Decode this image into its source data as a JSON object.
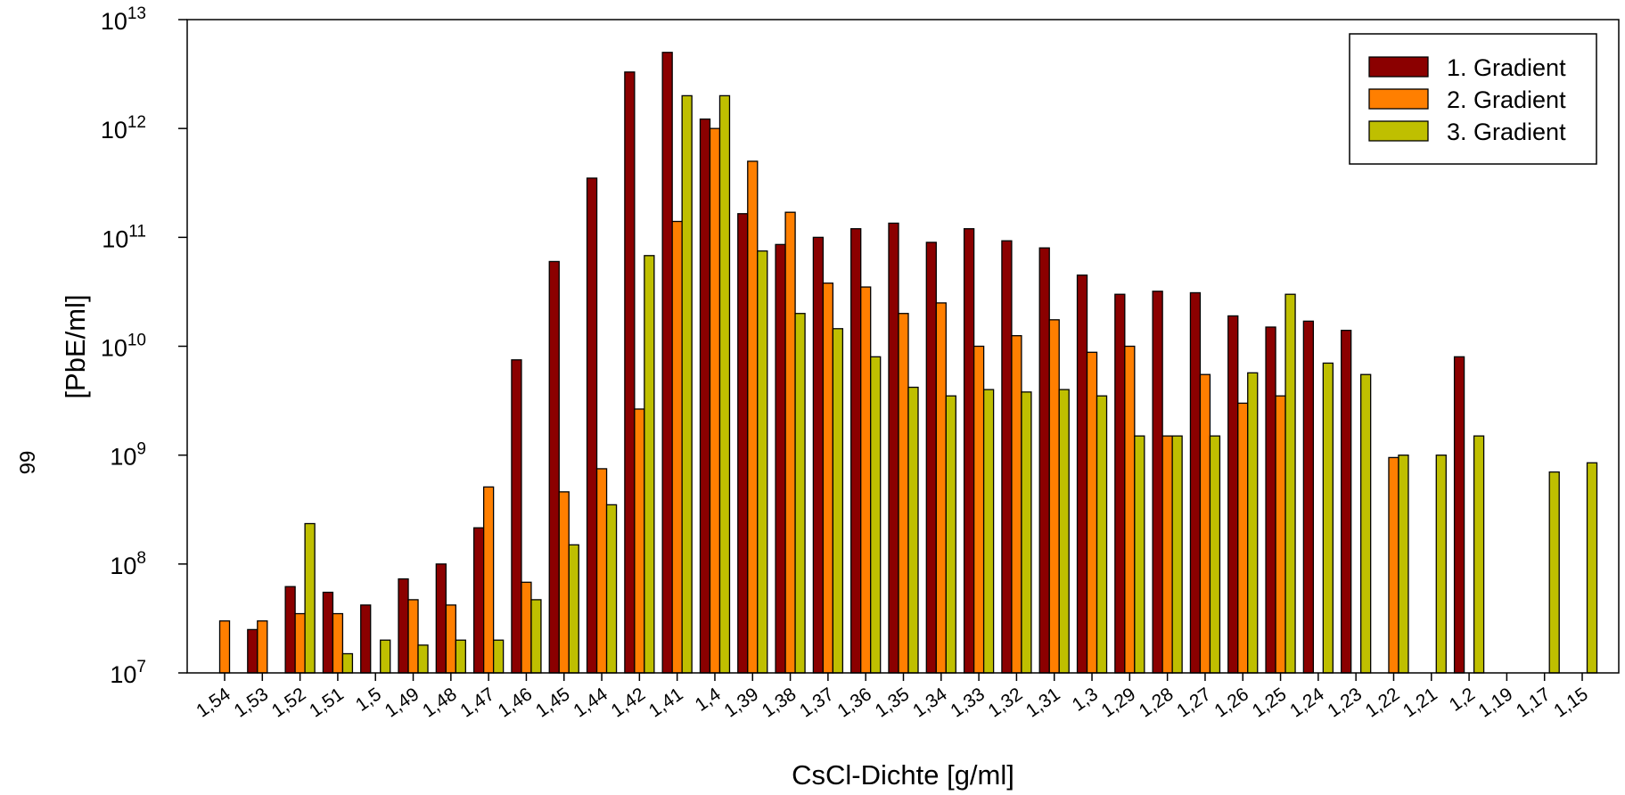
{
  "page_number": "99",
  "chart_data": {
    "type": "bar",
    "title": "",
    "xlabel": "CsCl-Dichte [g/ml]",
    "ylabel": "[PbE/ml]",
    "y_scale": "log",
    "ylim": [
      10000000,
      10000000000000
    ],
    "y_ticks": [
      {
        "base": "10",
        "exp": "7"
      },
      {
        "base": "10",
        "exp": "8"
      },
      {
        "base": "10",
        "exp": "9"
      },
      {
        "base": "10",
        "exp": "10"
      },
      {
        "base": "10",
        "exp": "11"
      },
      {
        "base": "10",
        "exp": "12"
      },
      {
        "base": "10",
        "exp": "13"
      }
    ],
    "legend_position": "top-right",
    "categories": [
      "1,54",
      "1,53",
      "1,52",
      "1,51",
      "1,5",
      "1,49",
      "1,48",
      "1,47",
      "1,46",
      "1,45",
      "1,44",
      "1,42",
      "1,41",
      "1,4",
      "1,39",
      "1,38",
      "1,37",
      "1,36",
      "1,35",
      "1,34",
      "1,33",
      "1,32",
      "1,31",
      "1,3",
      "1,29",
      "1,28",
      "1,27",
      "1,26",
      "1,25",
      "1,24",
      "1,23",
      "1,22",
      "1,21",
      "1,2",
      "1,19",
      "1,17",
      "1,15"
    ],
    "series": [
      {
        "name": "1. Gradient",
        "color": "#8b0000",
        "values": [
          null,
          25000000,
          62000000,
          55000000,
          42000000,
          73000000,
          100000000,
          215000000,
          7500000000,
          60000000000,
          350000000000,
          3300000000000,
          5000000000000,
          1220000000000,
          165000000000,
          86000000000,
          100000000000,
          120000000000,
          135000000000,
          90000000000,
          120000000000,
          93000000000,
          80000000000,
          45000000000,
          30000000000,
          32000000000,
          31000000000,
          19000000000,
          15000000000,
          17000000000,
          14000000000,
          null,
          null,
          8000000000,
          null,
          null,
          null
        ]
      },
      {
        "name": "2. Gradient",
        "color": "#ff7f00",
        "values": [
          30000000,
          30000000,
          35000000,
          35000000,
          null,
          47000000,
          42000000,
          510000000,
          68000000,
          460000000,
          750000000,
          2650000000,
          140000000000,
          1000000000000,
          500000000000,
          170000000000,
          38000000000,
          35000000000,
          20000000000,
          25000000000,
          10000000000,
          12500000000,
          17500000000,
          8800000000,
          10000000000,
          1500000000,
          5500000000,
          3000000000,
          3500000000,
          null,
          null,
          950000000,
          null,
          null,
          null,
          null,
          null
        ]
      },
      {
        "name": "3. Gradient",
        "color": "#bfbf00",
        "values": [
          null,
          null,
          235000000,
          15000000,
          20000000,
          18000000,
          20000000,
          20000000,
          47000000,
          150000000,
          350000000,
          68000000000,
          2000000000000,
          2000000000000,
          75000000000,
          20000000000,
          14500000000,
          8000000000,
          4200000000,
          3500000000,
          4000000000,
          3800000000,
          4000000000,
          3500000000,
          1500000000,
          1500000000,
          1500000000,
          5700000000,
          30000000000,
          7000000000,
          5500000000,
          1000000000,
          1000000000,
          1500000000,
          null,
          700000000,
          850000000
        ]
      }
    ]
  }
}
